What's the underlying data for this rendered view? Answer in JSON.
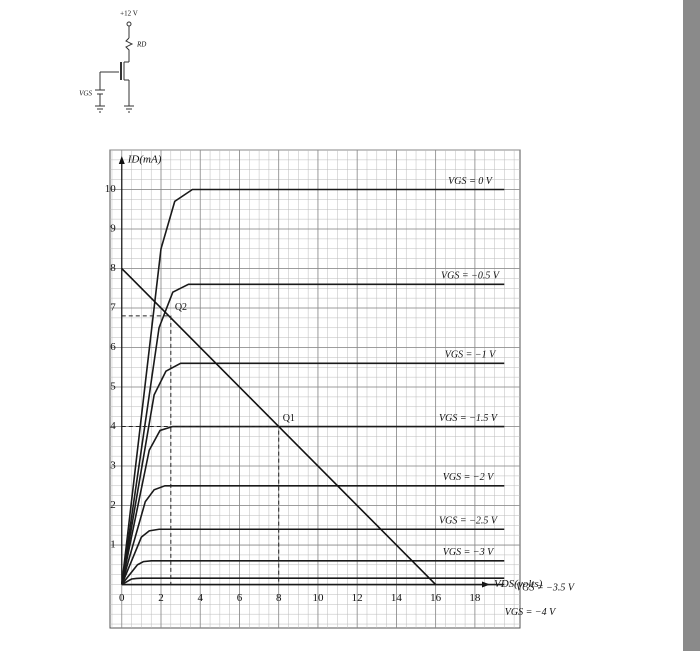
{
  "circuit": {
    "supply": "+12 V",
    "resistor": "RD",
    "source": "VGS"
  },
  "chart_data": {
    "type": "line",
    "y_label": "ID(mA)",
    "x_label": "VDS(volts)",
    "xlim": [
      -0.6,
      20.3
    ],
    "ylim": [
      -1.1,
      11
    ],
    "xticks": [
      0,
      2,
      4,
      6,
      8,
      10,
      12,
      14,
      16,
      18
    ],
    "yticks": [
      1,
      2,
      3,
      4,
      5,
      6,
      7,
      8,
      9,
      10
    ],
    "grid": true,
    "series": [
      {
        "name": "VGS = 0 V",
        "color": "#1a1a1a",
        "x": [
          0,
          2.0,
          2.7,
          3.6,
          19.5
        ],
        "values": [
          0,
          8.5,
          9.7,
          10,
          10
        ]
      },
      {
        "name": "VGS = −0.5 V",
        "color": "#1a1a1a",
        "x": [
          0,
          1.9,
          2.6,
          3.4,
          19.5
        ],
        "values": [
          0,
          6.5,
          7.4,
          7.6,
          7.6
        ]
      },
      {
        "name": "VGS = −1 V",
        "color": "#1a1a1a",
        "x": [
          0,
          1.65,
          2.25,
          3.0,
          19.5
        ],
        "values": [
          0,
          4.8,
          5.4,
          5.6,
          5.6
        ]
      },
      {
        "name": "VGS = −1.5 V",
        "color": "#1a1a1a",
        "x": [
          0,
          1.4,
          1.95,
          2.6,
          19.5
        ],
        "values": [
          0,
          3.4,
          3.9,
          4.0,
          4.0
        ]
      },
      {
        "name": "VGS = −2 V",
        "color": "#1a1a1a",
        "x": [
          0,
          1.2,
          1.65,
          2.2,
          19.5
        ],
        "values": [
          0,
          2.1,
          2.4,
          2.5,
          2.5
        ]
      },
      {
        "name": "VGS = −2.5 V",
        "color": "#1a1a1a",
        "x": [
          0,
          1.0,
          1.4,
          1.9,
          19.5
        ],
        "values": [
          0,
          1.2,
          1.36,
          1.4,
          1.4
        ]
      },
      {
        "name": "VGS = −3 V",
        "color": "#1a1a1a",
        "x": [
          0,
          0.8,
          1.1,
          1.5,
          19.5
        ],
        "values": [
          0,
          0.5,
          0.58,
          0.6,
          0.6
        ]
      },
      {
        "name": "VGS = −3.5 V",
        "color": "#1a1a1a",
        "x": [
          0,
          0.5,
          0.75,
          1.0,
          19.5
        ],
        "values": [
          0,
          0.14,
          0.155,
          0.16,
          0.16
        ]
      },
      {
        "name": "VGS = −4 V",
        "color": "#1a1a1a",
        "x": [
          0,
          19.5
        ],
        "values": [
          0,
          0
        ]
      }
    ],
    "load_line": {
      "x": [
        0,
        16
      ],
      "values": [
        8,
        0
      ]
    },
    "q_points": [
      {
        "label": "Q1",
        "x": 8,
        "value": 4
      },
      {
        "label": "Q2",
        "x": 2.5,
        "value": 6.8
      }
    ]
  }
}
